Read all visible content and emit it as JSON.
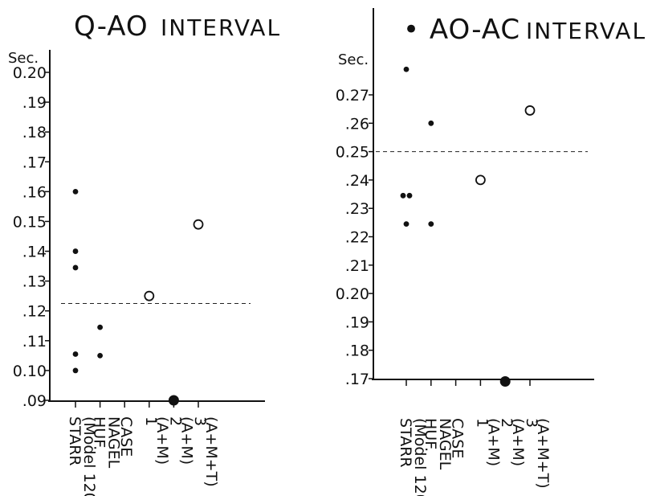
{
  "chart_data": [
    {
      "type": "scatter",
      "title_prefix": "Q-AO",
      "title_suffix": "INTERVAL",
      "ylabel": "Sec.",
      "ylim": [
        0.09,
        0.21
      ],
      "yticks": [
        {
          "value": 0.2,
          "label": "0.20"
        },
        {
          "value": 0.19,
          "label": ".19"
        },
        {
          "value": 0.18,
          "label": ".18"
        },
        {
          "value": 0.17,
          "label": ".17"
        },
        {
          "value": 0.16,
          "label": ".16"
        },
        {
          "value": 0.15,
          "label": "0.15"
        },
        {
          "value": 0.14,
          "label": ".14"
        },
        {
          "value": 0.13,
          "label": ".13"
        },
        {
          "value": 0.12,
          "label": ".12"
        },
        {
          "value": 0.11,
          "label": ".11"
        },
        {
          "value": 0.1,
          "label": "0.10"
        },
        {
          "value": 0.09,
          "label": ".09"
        }
      ],
      "reference_line": 0.1225,
      "categories": [
        {
          "label": "STARR",
          "sublabel": "(Model 1200)"
        },
        {
          "label": "HUF.",
          "sublabel": "NAGEL"
        },
        {
          "label": "CASE",
          "sublabel": ""
        },
        {
          "label": "1",
          "sublabel": "(A+M)"
        },
        {
          "label": "2",
          "sublabel": "(A+M)"
        },
        {
          "label": "3",
          "sublabel": "(A+M+T)"
        }
      ],
      "points": [
        {
          "category": 0,
          "y": 0.16,
          "marker": "dot"
        },
        {
          "category": 0,
          "y": 0.14,
          "marker": "dot"
        },
        {
          "category": 0,
          "y": 0.1345,
          "marker": "dot"
        },
        {
          "category": 0,
          "y": 0.1055,
          "marker": "dot"
        },
        {
          "category": 0,
          "y": 0.1,
          "marker": "dot"
        },
        {
          "category": 1,
          "y": 0.1145,
          "marker": "dot"
        },
        {
          "category": 1,
          "y": 0.105,
          "marker": "dot"
        },
        {
          "category": 3,
          "y": 0.125,
          "marker": "open"
        },
        {
          "category": 4,
          "y": 0.09,
          "marker": "large"
        },
        {
          "category": 5,
          "y": 0.149,
          "marker": "open"
        }
      ]
    },
    {
      "type": "scatter",
      "title_prefix": "• AO-AC",
      "title_suffix": "INTERVAL",
      "ylabel": "Sec.",
      "ylim": [
        0.16,
        0.28
      ],
      "yticks": [
        {
          "value": 0.27,
          "label": "0.27"
        },
        {
          "value": 0.26,
          "label": ".26"
        },
        {
          "value": 0.25,
          "label": "0.25"
        },
        {
          "value": 0.24,
          "label": ".24"
        },
        {
          "value": 0.23,
          "label": ".23"
        },
        {
          "value": 0.22,
          "label": ".22"
        },
        {
          "value": 0.21,
          "label": ".21"
        },
        {
          "value": 0.2,
          "label": "0.20"
        },
        {
          "value": 0.19,
          "label": ".19"
        },
        {
          "value": 0.18,
          "label": ".18"
        },
        {
          "value": 0.17,
          "label": ".17"
        }
      ],
      "reference_line": 0.25,
      "categories": [
        {
          "label": "STARR",
          "sublabel": "(Model 1200)"
        },
        {
          "label": "HUF.",
          "sublabel": "NAGEL"
        },
        {
          "label": "CASE",
          "sublabel": ""
        },
        {
          "label": "1",
          "sublabel": "(A+M)"
        },
        {
          "label": "2",
          "sublabel": "(A+M)"
        },
        {
          "label": "3",
          "sublabel": "(A+M+T)"
        }
      ],
      "points": [
        {
          "category": 0,
          "y": 0.279,
          "marker": "dot"
        },
        {
          "category": 0,
          "y": 0.2345,
          "marker": "dot",
          "offset": -1
        },
        {
          "category": 0,
          "y": 0.2345,
          "marker": "dot",
          "offset": 1
        },
        {
          "category": 0,
          "y": 0.2245,
          "marker": "dot"
        },
        {
          "category": 1,
          "y": 0.26,
          "marker": "dot"
        },
        {
          "category": 1,
          "y": 0.2245,
          "marker": "dot"
        },
        {
          "category": 3,
          "y": 0.24,
          "marker": "open"
        },
        {
          "category": 4,
          "y": 0.169,
          "marker": "large"
        },
        {
          "category": 5,
          "y": 0.2645,
          "marker": "open"
        }
      ]
    }
  ]
}
